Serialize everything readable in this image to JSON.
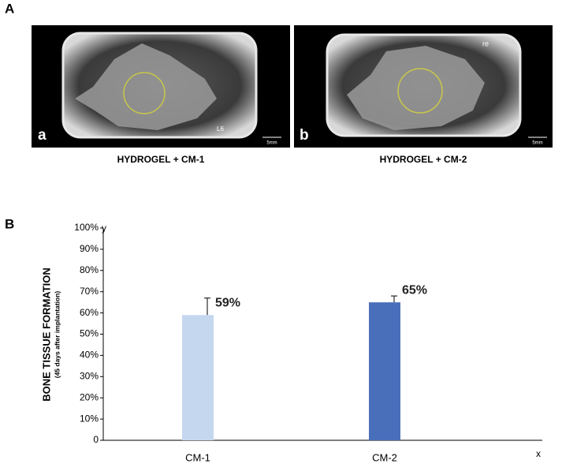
{
  "panel_a": {
    "label": "A",
    "images": [
      {
        "label": "a",
        "marker": "L6",
        "scale": "5mm",
        "caption": "HYDROGEL + CM-1"
      },
      {
        "label": "b",
        "marker": "re",
        "scale": "5mm",
        "caption": "HYDROGEL + CM-2"
      }
    ]
  },
  "chart_data": {
    "type": "bar",
    "panel_label": "B",
    "ylabel": "BONE TISSUE FORMATION",
    "ylabel_note": "(45 days after implantation)",
    "y_axis_letter": "y",
    "x_axis_letter": "x",
    "categories": [
      "CM-1",
      "CM-2"
    ],
    "values": [
      59,
      65
    ],
    "value_labels": [
      "59%",
      "65%"
    ],
    "errors": [
      8,
      3
    ],
    "colors": [
      "#c5d7ef",
      "#4a6fba"
    ],
    "ylim": [
      0,
      100
    ],
    "yticks": [
      0,
      {
        "value": 10,
        "label": "10%"
      },
      {
        "value": 20,
        "label": "20%"
      },
      {
        "value": 30,
        "label": "30%"
      },
      {
        "value": 40,
        "label": "40%"
      },
      {
        "value": 50,
        "label": "50%"
      },
      {
        "value": 60,
        "label": "60%"
      },
      {
        "value": 70,
        "label": "70%"
      },
      {
        "value": 80,
        "label": "80%"
      },
      {
        "value": 90,
        "label": "90%"
      },
      {
        "value": 100,
        "label": "100%"
      }
    ]
  }
}
